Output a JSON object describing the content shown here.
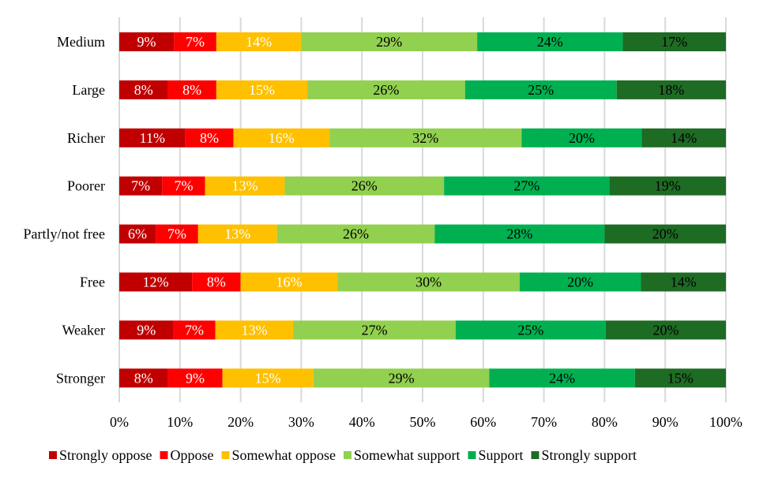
{
  "chart_data": {
    "type": "bar",
    "orientation": "horizontal",
    "stacked": "percent",
    "title": "",
    "xlabel": "",
    "ylabel": "",
    "xlim": [
      0,
      100
    ],
    "grid": true,
    "legend_position": "bottom",
    "x_ticks": [
      "0%",
      "10%",
      "20%",
      "30%",
      "40%",
      "50%",
      "60%",
      "70%",
      "80%",
      "90%",
      "100%"
    ],
    "categories": [
      "Medium",
      "Large",
      "Richer",
      "Poorer",
      "Partly/not free",
      "Free",
      "Weaker",
      "Stronger"
    ],
    "series": [
      {
        "name": "Strongly oppose",
        "color": "#C00000",
        "text_color": "#ffffff",
        "values": [
          9,
          8,
          11,
          7,
          6,
          12,
          9,
          8
        ]
      },
      {
        "name": "Oppose",
        "color": "#FF0000",
        "text_color": "#ffffff",
        "values": [
          7,
          8,
          8,
          7,
          7,
          8,
          7,
          9
        ]
      },
      {
        "name": "Somewhat oppose",
        "color": "#FFC000",
        "text_color": "#ffffff",
        "values": [
          14,
          15,
          16,
          13,
          13,
          16,
          13,
          15
        ]
      },
      {
        "name": "Somewhat support",
        "color": "#92D050",
        "text_color": "#000000",
        "values": [
          29,
          26,
          32,
          26,
          26,
          30,
          27,
          29
        ]
      },
      {
        "name": "Support",
        "color": "#00B050",
        "text_color": "#000000",
        "values": [
          24,
          25,
          20,
          27,
          28,
          20,
          25,
          24
        ]
      },
      {
        "name": "Strongly support",
        "color": "#1E6B24",
        "text_color": "#000000",
        "values": [
          17,
          18,
          14,
          19,
          20,
          14,
          20,
          15
        ]
      }
    ]
  }
}
